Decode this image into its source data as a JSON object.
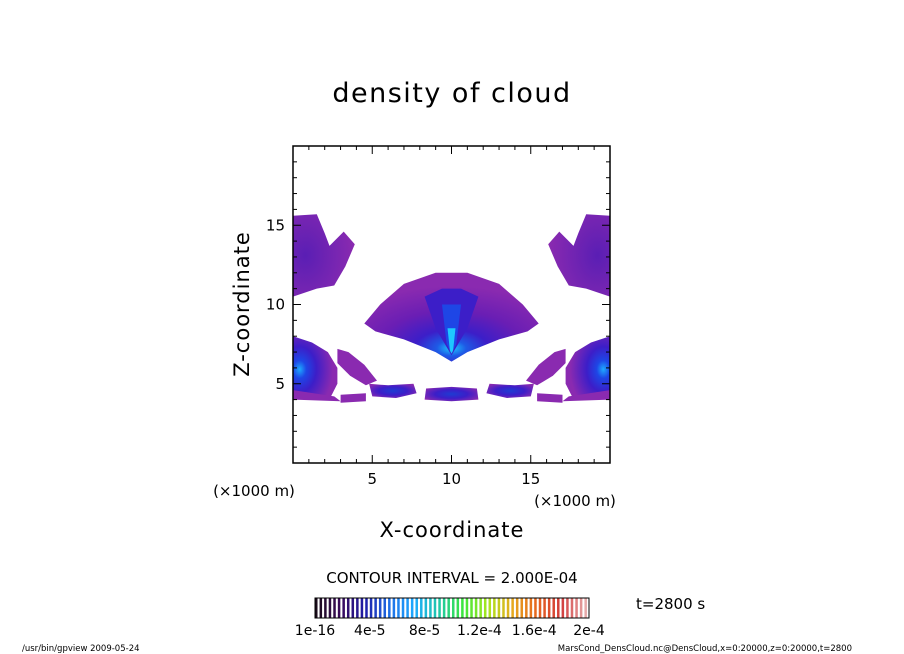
{
  "chart_data": {
    "type": "heatmap",
    "title": "density of cloud",
    "xlabel": "X-coordinate",
    "ylabel": "Z-coordinate",
    "x_unit": "(×1000 m)",
    "y_unit": "(×1000 m)",
    "xlim": [
      0,
      20
    ],
    "ylim": [
      0,
      20
    ],
    "x_ticks": [
      5,
      10,
      15
    ],
    "y_ticks": [
      5,
      10,
      15
    ],
    "contour_interval_label": "CONTOUR INTERVAL = 2.000E-04",
    "time_label": "t=2800 s",
    "colorbar": {
      "tick_labels": [
        "1e-16",
        "4e-5",
        "8e-5",
        "1.2e-4",
        "1.6e-4",
        "2e-4"
      ],
      "range": [
        0,
        0.0002
      ],
      "colors": [
        "#1a0a1a",
        "#3a0a5a",
        "#1e1eaa",
        "#1e6ee6",
        "#1eaaff",
        "#1ec8aa",
        "#3ce63c",
        "#aae61e",
        "#e6aa1e",
        "#e6641e",
        "#d23c3c",
        "#e6aaaa"
      ]
    },
    "regions": [
      {
        "name": "central cap",
        "x_range": [
          3.5,
          16
        ],
        "z_range": [
          6.5,
          12
        ],
        "peak": 8e-05
      },
      {
        "name": "left core",
        "x_range": [
          0,
          3
        ],
        "z_range": [
          4,
          8
        ],
        "peak": 9e-05
      },
      {
        "name": "right core",
        "x_range": [
          17,
          20
        ],
        "z_range": [
          4,
          8
        ],
        "peak": 9e-05
      },
      {
        "name": "upper left",
        "x_range": [
          0,
          4
        ],
        "z_range": [
          10.5,
          16
        ],
        "peak": 2e-05
      },
      {
        "name": "upper right",
        "x_range": [
          16,
          20
        ],
        "z_range": [
          10.5,
          16
        ],
        "peak": 2e-05
      },
      {
        "name": "base band",
        "x_range": [
          3,
          17
        ],
        "z_range": [
          3.8,
          5.2
        ],
        "peak": 4e-05
      }
    ]
  },
  "footer": {
    "left": "/usr/bin/gpview   2009-05-24",
    "right": "MarsCond_DensCloud.nc@DensCloud,x=0:20000,z=0:20000,t=2800"
  }
}
